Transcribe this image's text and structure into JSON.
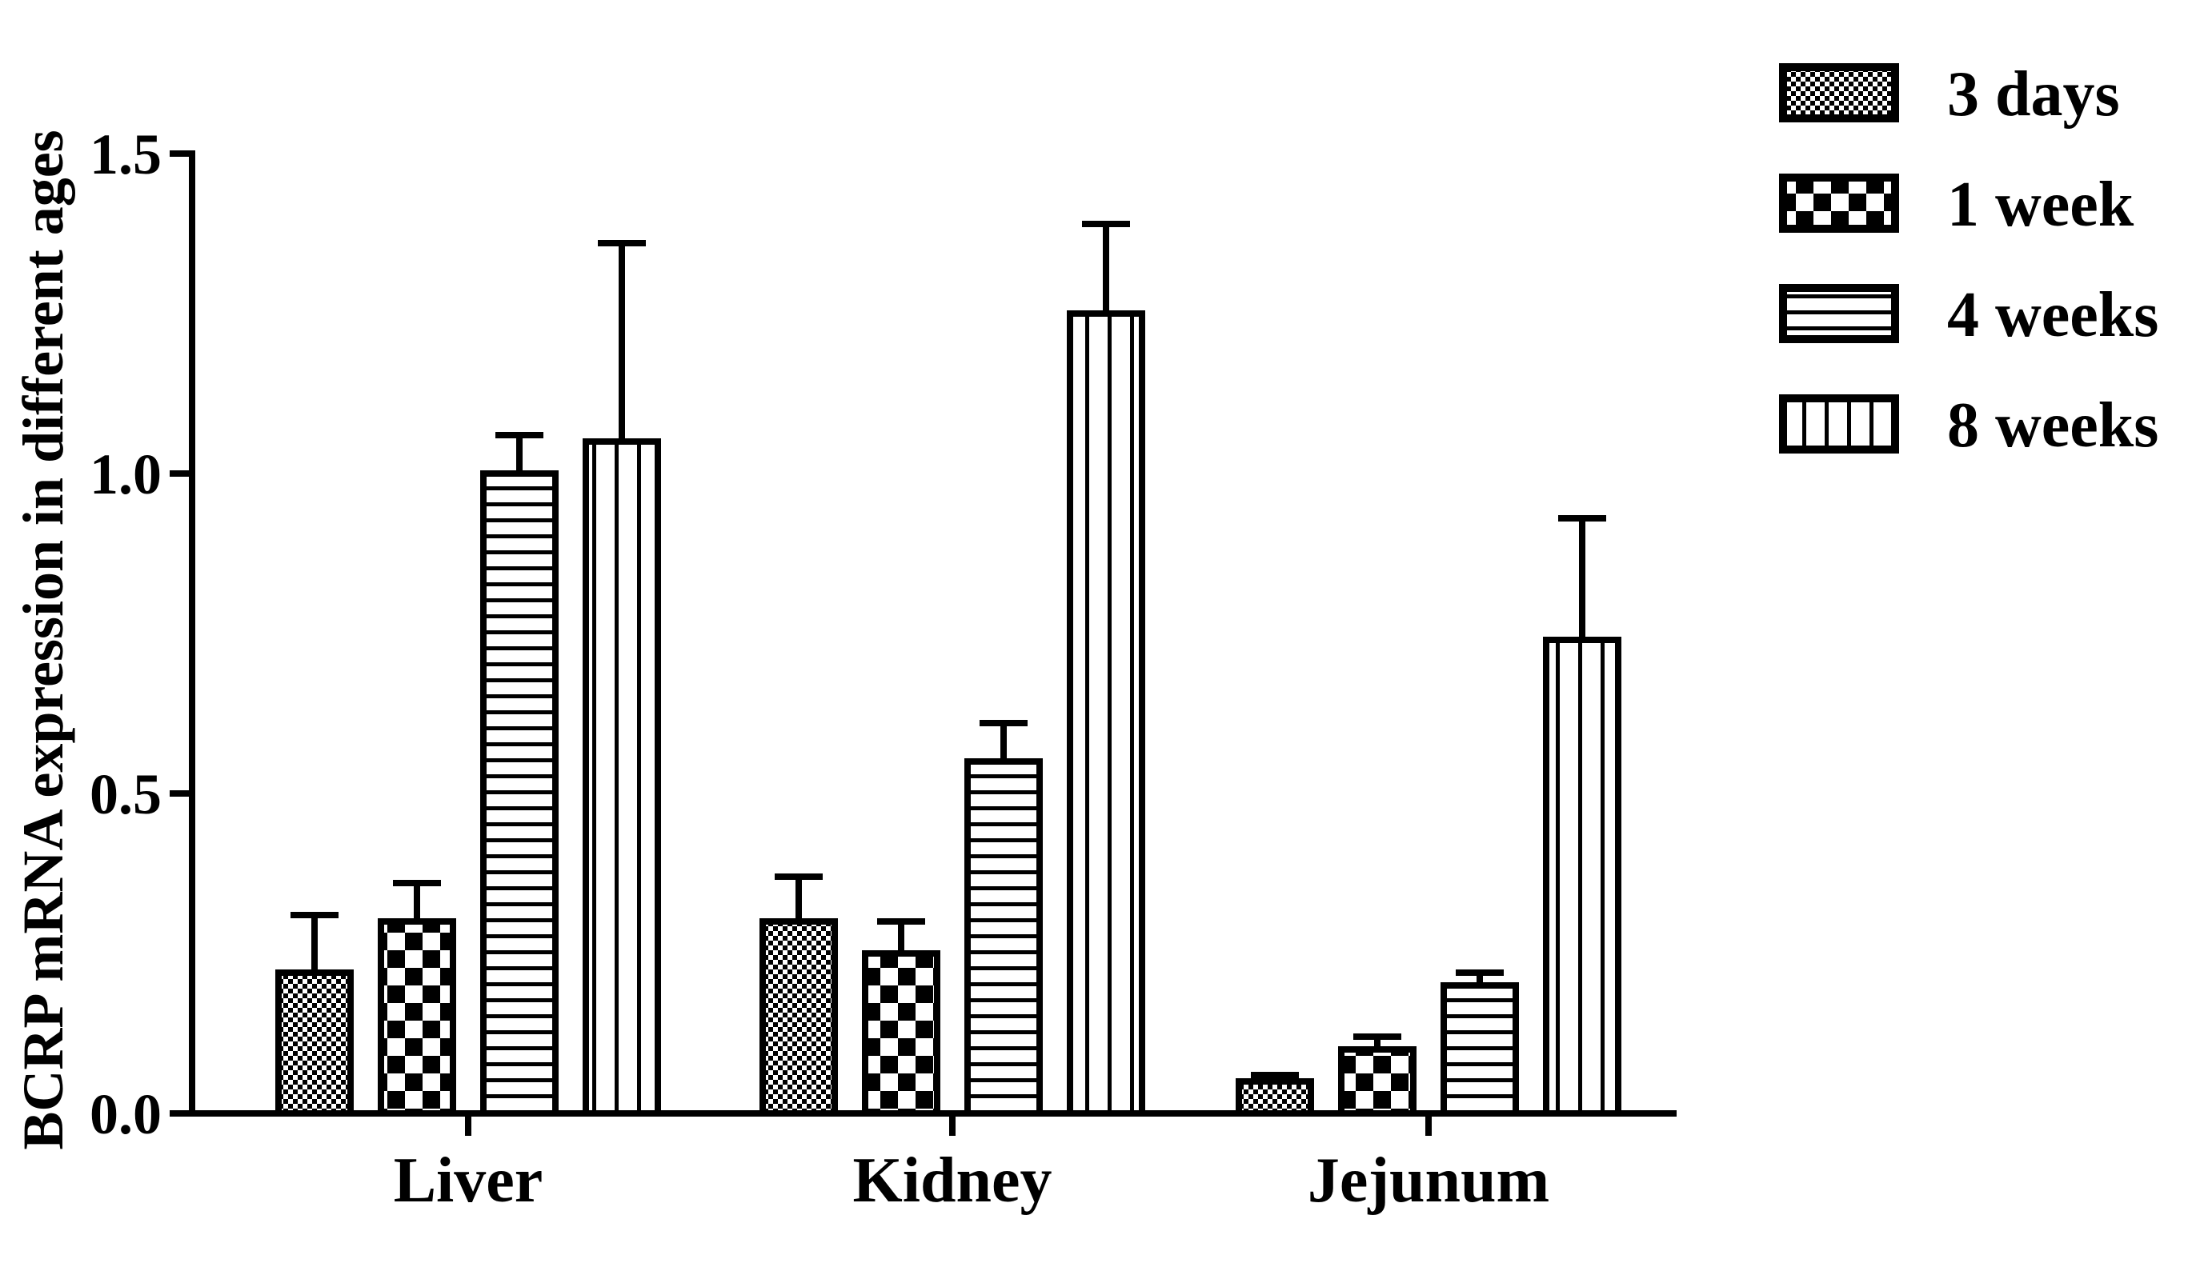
{
  "chart_data": {
    "type": "bar",
    "title": "",
    "xlabel": "",
    "ylabel": "BCRP mRNA expression in different ages",
    "ylim": [
      0,
      1.5
    ],
    "yticks": [
      "0.0",
      "0.5",
      "1.0",
      "1.5"
    ],
    "ytick_values": [
      0,
      0.5,
      1.0,
      1.5
    ],
    "categories": [
      "Liver",
      "Kidney",
      "Jejunum"
    ],
    "series": [
      {
        "name": "3 days",
        "pattern": "checker-fine",
        "values": [
          0.22,
          0.3,
          0.05
        ],
        "errors": [
          0.09,
          0.07,
          0.01
        ]
      },
      {
        "name": "1 week",
        "pattern": "checker-large",
        "values": [
          0.3,
          0.25,
          0.1
        ],
        "errors": [
          0.06,
          0.05,
          0.02
        ]
      },
      {
        "name": "4 weeks",
        "pattern": "horizontal-lines",
        "values": [
          1.0,
          0.55,
          0.2
        ],
        "errors": [
          0.06,
          0.06,
          0.02
        ]
      },
      {
        "name": "8 weeks",
        "pattern": "vertical-lines",
        "values": [
          1.05,
          1.25,
          0.74
        ],
        "errors": [
          0.31,
          0.14,
          0.19
        ]
      }
    ],
    "legend_position": "top-right",
    "grid": false,
    "colors": {
      "stroke": "#000000",
      "fill": "#ffffff"
    }
  }
}
